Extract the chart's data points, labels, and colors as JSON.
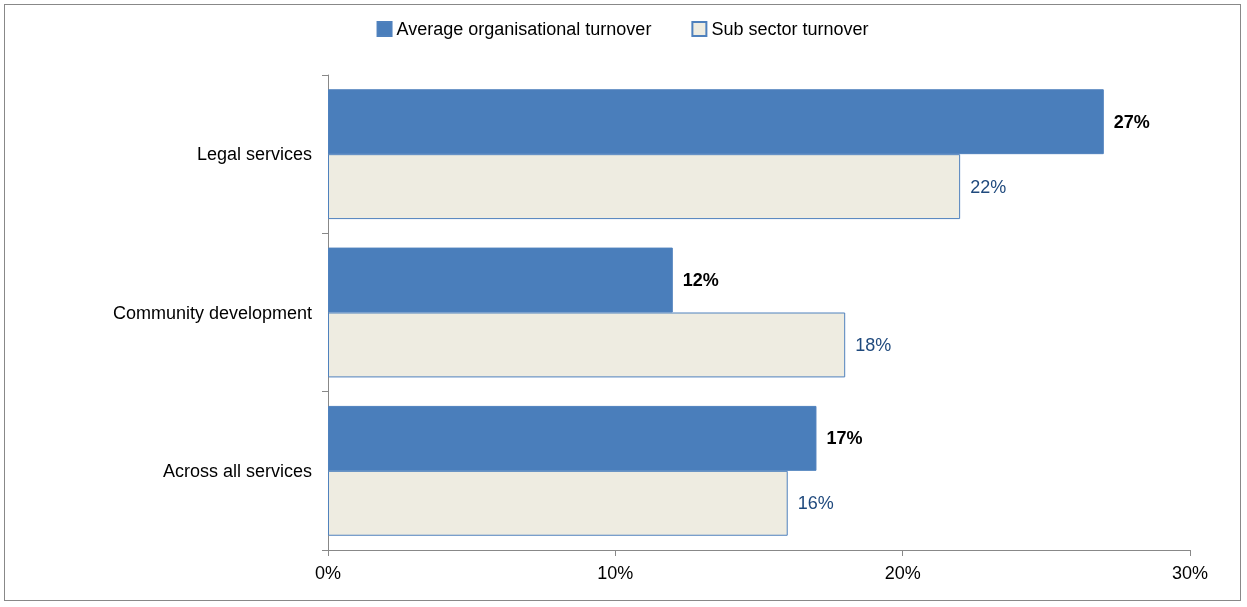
{
  "chart_data": {
    "type": "bar",
    "orientation": "horizontal",
    "categories": [
      "Legal services",
      "Community development",
      "Across all services"
    ],
    "series": [
      {
        "name": "Average organisational turnover",
        "color": "#4a7ebb",
        "values": [
          27,
          12,
          17
        ],
        "value_labels": [
          "27%",
          "12%",
          "17%"
        ]
      },
      {
        "name": "Sub sector turnover",
        "color": "#eeece1",
        "values": [
          22,
          18,
          16
        ],
        "value_labels": [
          "22%",
          "18%",
          "16%"
        ]
      }
    ],
    "xlim": [
      0,
      30
    ],
    "xticks": [
      {
        "value": 0,
        "label": "0%"
      },
      {
        "value": 10,
        "label": "10%"
      },
      {
        "value": 20,
        "label": "20%"
      },
      {
        "value": 30,
        "label": "30%"
      }
    ],
    "legend": "top",
    "grid": false
  }
}
